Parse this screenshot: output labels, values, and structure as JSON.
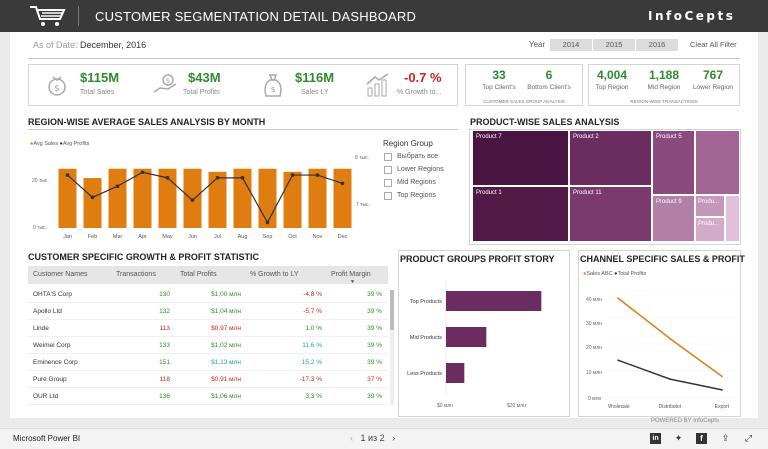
{
  "header": {
    "title": "CUSTOMER SEGMENTATION DETAIL DASHBOARD",
    "brand": "InfoCepts"
  },
  "filters": {
    "as_of_label": "As of Date:",
    "as_of_value": "December, 2016",
    "year_label": "Year",
    "years": [
      "2014",
      "2015",
      "2016"
    ],
    "clear": "Clear All Filter"
  },
  "kpis": [
    {
      "value": "$115M",
      "label": "Total Sales",
      "icon": "money-bag-icon"
    },
    {
      "value": "$43M",
      "label": "Total Profits",
      "icon": "hand-money-icon"
    },
    {
      "value": "$116M",
      "label": "Sales LY",
      "icon": "dollar-bag-icon"
    },
    {
      "value": "-0.7 %",
      "label": "% Growth to...",
      "icon": "growth-chart-icon"
    }
  ],
  "customer_counts": {
    "items": [
      {
        "value": "33",
        "label": "Top Client's"
      },
      {
        "value": "6",
        "label": "Bottom Client's"
      }
    ],
    "caption": "CUSTOMER SALES GROUP ANALYSIS"
  },
  "region_counts": {
    "items": [
      {
        "value": "4,004",
        "label": "Top Region"
      },
      {
        "value": "1,188",
        "label": "Mid Region"
      },
      {
        "value": "767",
        "label": "Lower Region"
      }
    ],
    "caption": "REGION-WISE TRANSACTIONS"
  },
  "colors": {
    "accent": "#e07d10",
    "green": "#2e8b2e",
    "red": "#cc2222",
    "purple": "#6b2c5f",
    "teal": "#1aa59a"
  },
  "region_chart": {
    "title": "REGION-WISE AVERAGE SALES ANALYSIS BY MONTH",
    "legend": [
      "Avg Sales",
      "Avg Profits"
    ],
    "y_left": [
      "20 тыс.",
      "0 тыс."
    ],
    "y_right": [
      "8 тыс.",
      "7 тыс."
    ]
  },
  "region_group": {
    "title": "Region Group",
    "options": [
      "Выбрать все",
      "Lower Regions",
      "Mid Regions",
      "Top Regions"
    ]
  },
  "product_title": "PRODUCT-WISE SALES ANALYSIS",
  "treemap": [
    "Product 7",
    "Product 2",
    "Product 5",
    "Product 1",
    "Product 11",
    "Product 9",
    "Produ...",
    "Produ..."
  ],
  "customer_table": {
    "title": "CUSTOMER SPECIFIC GROWTH & PROFIT STATISTIC",
    "headers": [
      "Customer Names",
      "Transactions",
      "Total Profits",
      "% Growth to LY",
      "Profit Margin"
    ],
    "rows": [
      {
        "name": "OHTA'S Corp",
        "tx": "130",
        "profit": "$1,00 млн",
        "growth": "-4,8 %",
        "margin": "39 %",
        "tx_c": "green",
        "p_c": "green",
        "g_c": "red",
        "m_c": "green"
      },
      {
        "name": "Apollo Ltd",
        "tx": "132",
        "profit": "$1,04 млн",
        "growth": "-5,7 %",
        "margin": "39 %",
        "tx_c": "green",
        "p_c": "green",
        "g_c": "red",
        "m_c": "green"
      },
      {
        "name": "Linde",
        "tx": "113",
        "profit": "$0,97 млн",
        "growth": "1,0 %",
        "margin": "39 %",
        "tx_c": "red",
        "p_c": "red",
        "g_c": "green",
        "m_c": "green"
      },
      {
        "name": "Weimei Corp",
        "tx": "133",
        "profit": "$1,02 млн",
        "growth": "11,6 %",
        "margin": "39 %",
        "tx_c": "green",
        "p_c": "green",
        "g_c": "teal",
        "m_c": "green"
      },
      {
        "name": "Eminence Corp",
        "tx": "151",
        "profit": "$1,13 млн",
        "growth": "15,2 %",
        "margin": "39 %",
        "tx_c": "green",
        "p_c": "teal",
        "g_c": "teal",
        "m_c": "green"
      },
      {
        "name": "Pure Group",
        "tx": "118",
        "profit": "$0,91 млн",
        "growth": "-17,3 %",
        "margin": "37 %",
        "tx_c": "red",
        "p_c": "red",
        "g_c": "red",
        "m_c": "red"
      },
      {
        "name": "OUR Ltd",
        "tx": "136",
        "profit": "$1,06 млн",
        "growth": "3,3 %",
        "margin": "39 %",
        "tx_c": "green",
        "p_c": "green",
        "g_c": "green",
        "m_c": "green"
      }
    ]
  },
  "product_profit": {
    "title": "PRODUCT GROUPS PROFIT STORY",
    "x_ticks": [
      "$0 млн",
      "$20 млн"
    ]
  },
  "channel": {
    "title": "CHANNEL SPECIFIC SALES & PROFIT",
    "legend": [
      "Sales ABC",
      "Total Profits"
    ],
    "y_ticks": [
      "40 млн",
      "30 млн",
      "20 млн",
      "10 млн",
      "0 млн"
    ]
  },
  "chart_data": [
    {
      "type": "bar",
      "title": "REGION-WISE AVERAGE SALES ANALYSIS BY MONTH",
      "categories": [
        "Jan",
        "Feb",
        "Mar",
        "Apr",
        "May",
        "Jun",
        "Jul",
        "Aug",
        "Sep",
        "Oct",
        "Nov",
        "Dec"
      ],
      "series": [
        {
          "name": "Avg Sales",
          "values": [
            19,
            16,
            19,
            19,
            19,
            19,
            18,
            19,
            19,
            18,
            19,
            19
          ]
        },
        {
          "name": "Avg Profits",
          "values": [
            7.65,
            7.25,
            7.45,
            7.7,
            7.6,
            7.2,
            7.6,
            7.6,
            6.8,
            7.65,
            7.65,
            7.5
          ]
        }
      ],
      "ylim": [
        0,
        25
      ],
      "y2lim": [
        6.7,
        8.1
      ]
    },
    {
      "type": "bar",
      "title": "PRODUCT GROUPS PROFIT STORY",
      "categories": [
        "Top Products",
        "Mid Products",
        "Less Products"
      ],
      "values": [
        26,
        11,
        5
      ],
      "xlim": [
        0,
        30
      ]
    },
    {
      "type": "line",
      "title": "CHANNEL SPECIFIC SALES & PROFIT",
      "categories": [
        "Wholesale",
        "Distributor",
        "Export"
      ],
      "series": [
        {
          "name": "Sales ABC",
          "values": [
            37,
            22,
            8
          ]
        },
        {
          "name": "Total Profits",
          "values": [
            14,
            7,
            3
          ]
        }
      ],
      "ylim": [
        0,
        40
      ]
    }
  ],
  "footer": {
    "app": "Microsoft Power BI",
    "page": "1 из 2",
    "powered": "POWERED BY InfoCepts",
    "share": [
      "linkedin-icon",
      "twitter-icon",
      "facebook-icon",
      "share-icon",
      "expand-icon"
    ]
  }
}
